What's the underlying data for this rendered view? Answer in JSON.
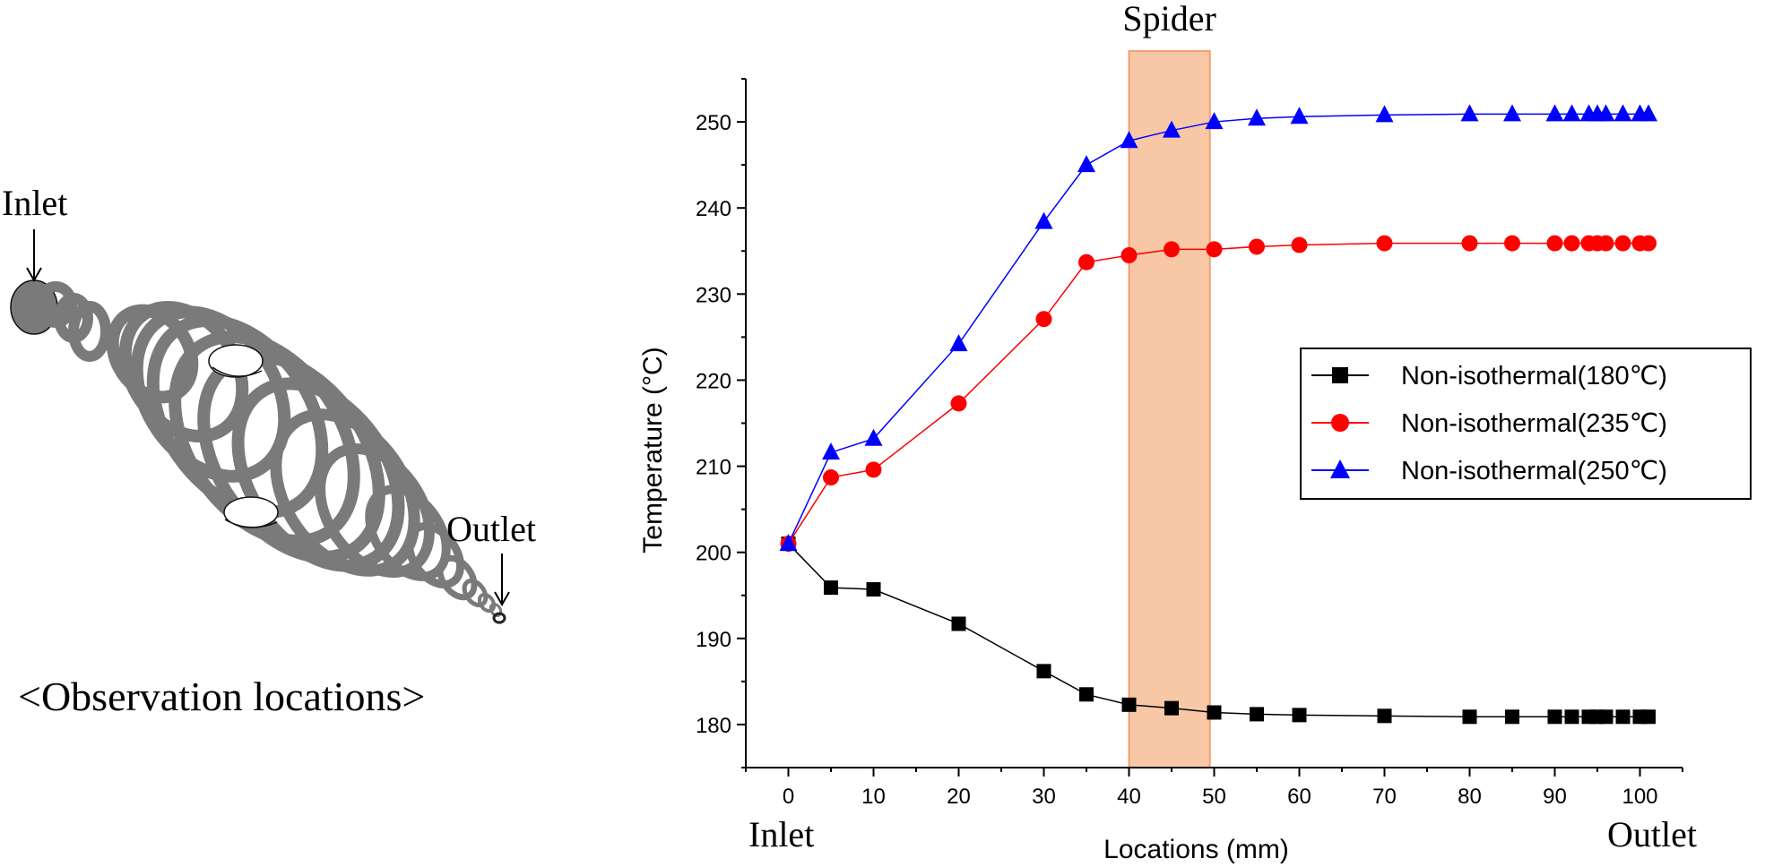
{
  "illustration": {
    "inlet_label": "Inlet",
    "outlet_label": "Outlet",
    "caption": "<Observation locations>"
  },
  "chart_data": {
    "type": "line",
    "title": "",
    "xlabel": "Locations (mm)",
    "ylabel": "Temperature (°C)",
    "x_start_label": "Inlet",
    "x_end_label": "Outlet",
    "xlim": [
      -5,
      105
    ],
    "ylim": [
      175,
      255
    ],
    "xticks": [
      0,
      10,
      20,
      30,
      40,
      50,
      60,
      70,
      80,
      90,
      100
    ],
    "yticks": [
      180,
      190,
      200,
      210,
      220,
      230,
      240,
      250
    ],
    "x": [
      0,
      5,
      10,
      20,
      30,
      35,
      40,
      45,
      50,
      55,
      60,
      70,
      80,
      85,
      90,
      92,
      94,
      95,
      96,
      98,
      100,
      101
    ],
    "series": [
      {
        "name": "Non-isothermal(180℃)",
        "color": "#000000",
        "marker": "square",
        "values": [
          201,
          195.9,
          195.7,
          191.7,
          186.2,
          183.5,
          182.3,
          181.9,
          181.4,
          181.2,
          181.1,
          181.0,
          180.9,
          180.9,
          180.9,
          180.9,
          180.9,
          180.9,
          180.9,
          180.9,
          180.9,
          180.9
        ]
      },
      {
        "name": "Non-isothermal(235℃)",
        "color": "#ff0000",
        "marker": "circle",
        "values": [
          201,
          208.7,
          209.6,
          217.3,
          227.1,
          233.7,
          234.5,
          235.2,
          235.2,
          235.5,
          235.7,
          235.9,
          235.9,
          235.9,
          235.9,
          235.9,
          235.9,
          235.9,
          235.9,
          235.9,
          235.9,
          235.9
        ]
      },
      {
        "name": "Non-isothermal(250℃)",
        "color": "#0000ff",
        "marker": "triangle",
        "values": [
          201,
          211.6,
          213.2,
          224.2,
          238.4,
          245.0,
          247.8,
          249.0,
          250.0,
          250.4,
          250.6,
          250.8,
          250.9,
          250.9,
          250.9,
          250.9,
          250.9,
          250.9,
          250.9,
          250.9,
          250.9,
          250.9
        ]
      }
    ],
    "highlight": {
      "label": "Spider",
      "x_range": [
        40,
        49.5
      ],
      "color": "#f8c8a6",
      "border": "#f0a070"
    },
    "legend_position": "right-middle",
    "grid": false
  }
}
